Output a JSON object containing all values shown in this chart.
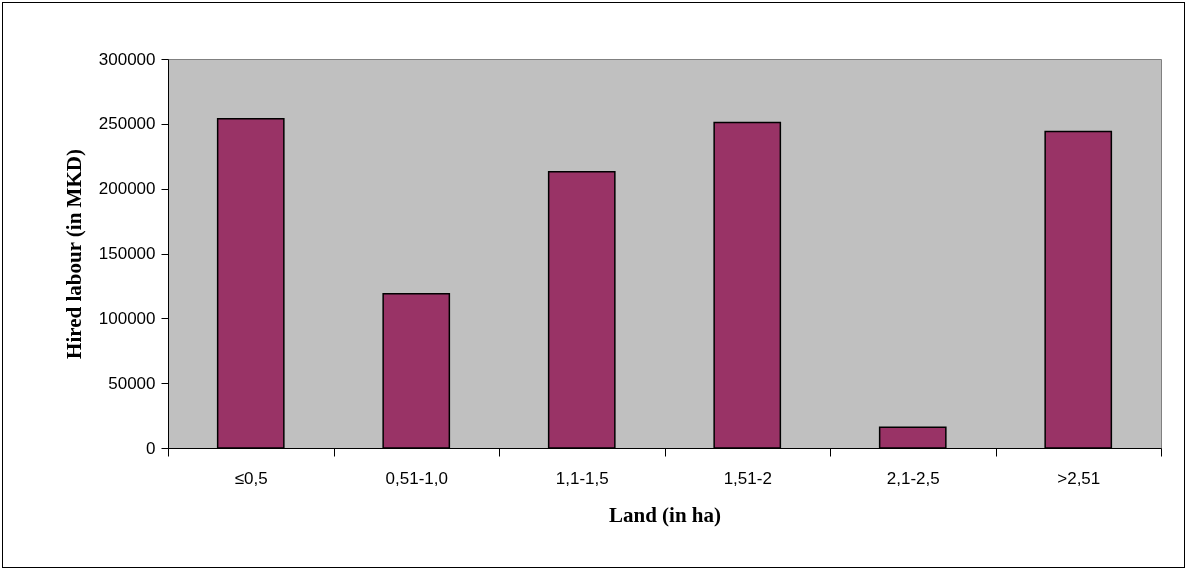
{
  "chart_data": {
    "type": "bar",
    "xlabel": "Land (in ha)",
    "ylabel": "Hired labour (in MKD)",
    "categories": [
      "≤0,5",
      "0,51-1,0",
      "1,1-1,5",
      "1,51-2",
      "2,1-2,5",
      ">2,51"
    ],
    "values": [
      254000,
      119000,
      213000,
      251000,
      16000,
      244000
    ],
    "color": "#993366",
    "ylim": [
      0,
      300000
    ],
    "yticks": [
      0,
      50000,
      100000,
      150000,
      200000,
      250000,
      300000
    ],
    "grid": false
  }
}
